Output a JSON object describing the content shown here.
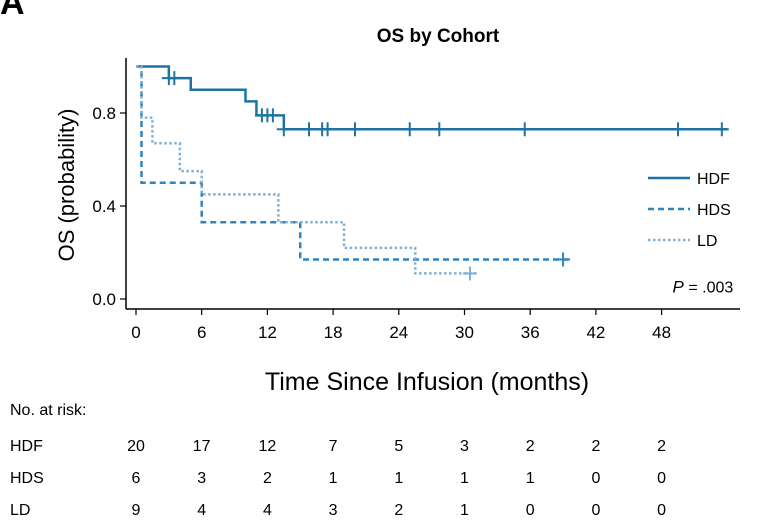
{
  "panel_label": "A",
  "chart_data": {
    "type": "line",
    "title": "OS by Cohort",
    "xlabel": "Time Since Infusion (months)",
    "ylabel": "OS (probability)",
    "xlim": [
      0,
      55
    ],
    "ylim": [
      0,
      1
    ],
    "x_ticks": [
      0,
      6,
      12,
      18,
      24,
      30,
      36,
      42,
      48
    ],
    "x_tick_labels": [
      "0",
      "6",
      "12",
      "18",
      "24",
      "30",
      "36",
      "42",
      "48"
    ],
    "y_ticks": [
      0,
      0.4,
      0.8
    ],
    "y_tick_labels": [
      "0.0",
      "0.4",
      "0.8"
    ],
    "legend_position": "right",
    "annotation": {
      "prefix": "P",
      "text": " = .003",
      "x": 49,
      "y": 0.05
    },
    "series": [
      {
        "name": "HDF",
        "style": "solid",
        "color": "#1f73a3",
        "steps": [
          [
            0,
            1.0
          ],
          [
            3,
            0.95
          ],
          [
            5,
            0.9
          ],
          [
            10,
            0.85
          ],
          [
            11,
            0.79
          ],
          [
            13.5,
            0.73
          ],
          [
            54,
            0.73
          ]
        ],
        "censor_x": [
          3,
          3.5,
          11.5,
          12,
          12.5,
          13.5,
          15.8,
          17,
          17.5,
          20,
          25,
          27.7,
          35.5,
          49.5,
          53.5
        ]
      },
      {
        "name": "HDS",
        "style": "dashed",
        "color": "#2f84c0",
        "steps": [
          [
            0,
            1.0
          ],
          [
            0.5,
            0.5
          ],
          [
            6,
            0.33
          ],
          [
            15,
            0.17
          ],
          [
            39.5,
            0.17
          ]
        ],
        "censor_x": [
          39
        ]
      },
      {
        "name": "LD",
        "style": "dotted",
        "color": "#7fb0d6",
        "steps": [
          [
            0,
            1.0
          ],
          [
            0.5,
            0.78
          ],
          [
            1.5,
            0.67
          ],
          [
            4,
            0.55
          ],
          [
            6,
            0.45
          ],
          [
            13,
            0.33
          ],
          [
            19,
            0.22
          ],
          [
            25.5,
            0.11
          ],
          [
            31,
            0.11
          ]
        ],
        "censor_x": [
          30.5
        ]
      }
    ]
  },
  "risk_table": {
    "title": "No. at risk:",
    "timepoints": [
      0,
      6,
      12,
      18,
      24,
      30,
      36,
      42,
      48
    ],
    "rows": [
      {
        "label": "HDF",
        "counts": [
          "20",
          "17",
          "12",
          "7",
          "5",
          "3",
          "2",
          "2",
          "2"
        ]
      },
      {
        "label": "HDS",
        "counts": [
          "6",
          "3",
          "2",
          "1",
          "1",
          "1",
          "1",
          "0",
          "0"
        ]
      },
      {
        "label": "LD",
        "counts": [
          "9",
          "4",
          "4",
          "3",
          "2",
          "1",
          "0",
          "0",
          "0"
        ]
      }
    ]
  }
}
